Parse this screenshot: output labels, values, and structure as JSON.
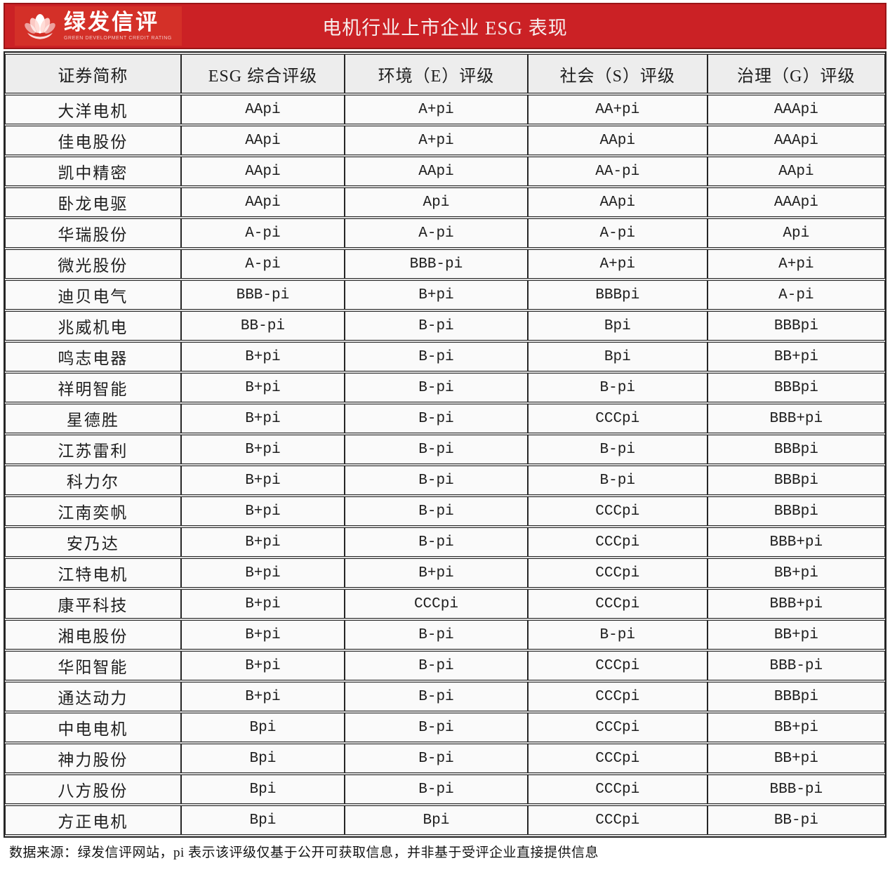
{
  "header": {
    "logo": {
      "icon": "lotus-icon",
      "name_cn": "绿发信评",
      "name_en": "GREEN DEVELOPMENT CREDIT RATING"
    },
    "title": "电机行业上市企业 ESG 表现"
  },
  "colors": {
    "band_red": "#cb2125",
    "logo_red": "#d43028",
    "band_border": "#9a1517",
    "header_row_bg": "#ededed",
    "cell_bg": "#fafafa",
    "table_border": "#262626",
    "row_gap_gray": "#dcdcdc",
    "title_text": "#f7eeee"
  },
  "chart_data": {
    "type": "table",
    "title": "电机行业上市企业 ESG 表现",
    "columns": [
      "证券简称",
      "ESG 综合评级",
      "环境（E）评级",
      "社会（S）评级",
      "治理（G）评级"
    ],
    "rows": [
      [
        "大洋电机",
        "AApi",
        "A+pi",
        "AA+pi",
        "AAApi"
      ],
      [
        "佳电股份",
        "AApi",
        "A+pi",
        "AApi",
        "AAApi"
      ],
      [
        "凯中精密",
        "AApi",
        "AApi",
        "AA-pi",
        "AApi"
      ],
      [
        "卧龙电驱",
        "AApi",
        "Api",
        "AApi",
        "AAApi"
      ],
      [
        "华瑞股份",
        "A-pi",
        "A-pi",
        "A-pi",
        "Api"
      ],
      [
        "微光股份",
        "A-pi",
        "BBB-pi",
        "A+pi",
        "A+pi"
      ],
      [
        "迪贝电气",
        "BBB-pi",
        "B+pi",
        "BBBpi",
        "A-pi"
      ],
      [
        "兆威机电",
        "BB-pi",
        "B-pi",
        "Bpi",
        "BBBpi"
      ],
      [
        "鸣志电器",
        "B+pi",
        "B-pi",
        "Bpi",
        "BB+pi"
      ],
      [
        "祥明智能",
        "B+pi",
        "B-pi",
        "B-pi",
        "BBBpi"
      ],
      [
        "星德胜",
        "B+pi",
        "B-pi",
        "CCCpi",
        "BBB+pi"
      ],
      [
        "江苏雷利",
        "B+pi",
        "B-pi",
        "B-pi",
        "BBBpi"
      ],
      [
        "科力尔",
        "B+pi",
        "B-pi",
        "B-pi",
        "BBBpi"
      ],
      [
        "江南奕帆",
        "B+pi",
        "B-pi",
        "CCCpi",
        "BBBpi"
      ],
      [
        "安乃达",
        "B+pi",
        "B-pi",
        "CCCpi",
        "BBB+pi"
      ],
      [
        "江特电机",
        "B+pi",
        "B+pi",
        "CCCpi",
        "BB+pi"
      ],
      [
        "康平科技",
        "B+pi",
        "CCCpi",
        "CCCpi",
        "BBB+pi"
      ],
      [
        "湘电股份",
        "B+pi",
        "B-pi",
        "B-pi",
        "BB+pi"
      ],
      [
        "华阳智能",
        "B+pi",
        "B-pi",
        "CCCpi",
        "BBB-pi"
      ],
      [
        "通达动力",
        "B+pi",
        "B-pi",
        "CCCpi",
        "BBBpi"
      ],
      [
        "中电电机",
        "Bpi",
        "B-pi",
        "CCCpi",
        "BB+pi"
      ],
      [
        "神力股份",
        "Bpi",
        "B-pi",
        "CCCpi",
        "BB+pi"
      ],
      [
        "八方股份",
        "Bpi",
        "B-pi",
        "CCCpi",
        "BBB-pi"
      ],
      [
        "方正电机",
        "Bpi",
        "Bpi",
        "CCCpi",
        "BB-pi"
      ]
    ]
  },
  "footer": {
    "source_note": "数据来源：绿发信评网站，pi 表示该评级仅基于公开可获取信息，并非基于受评企业直接提供信息"
  }
}
